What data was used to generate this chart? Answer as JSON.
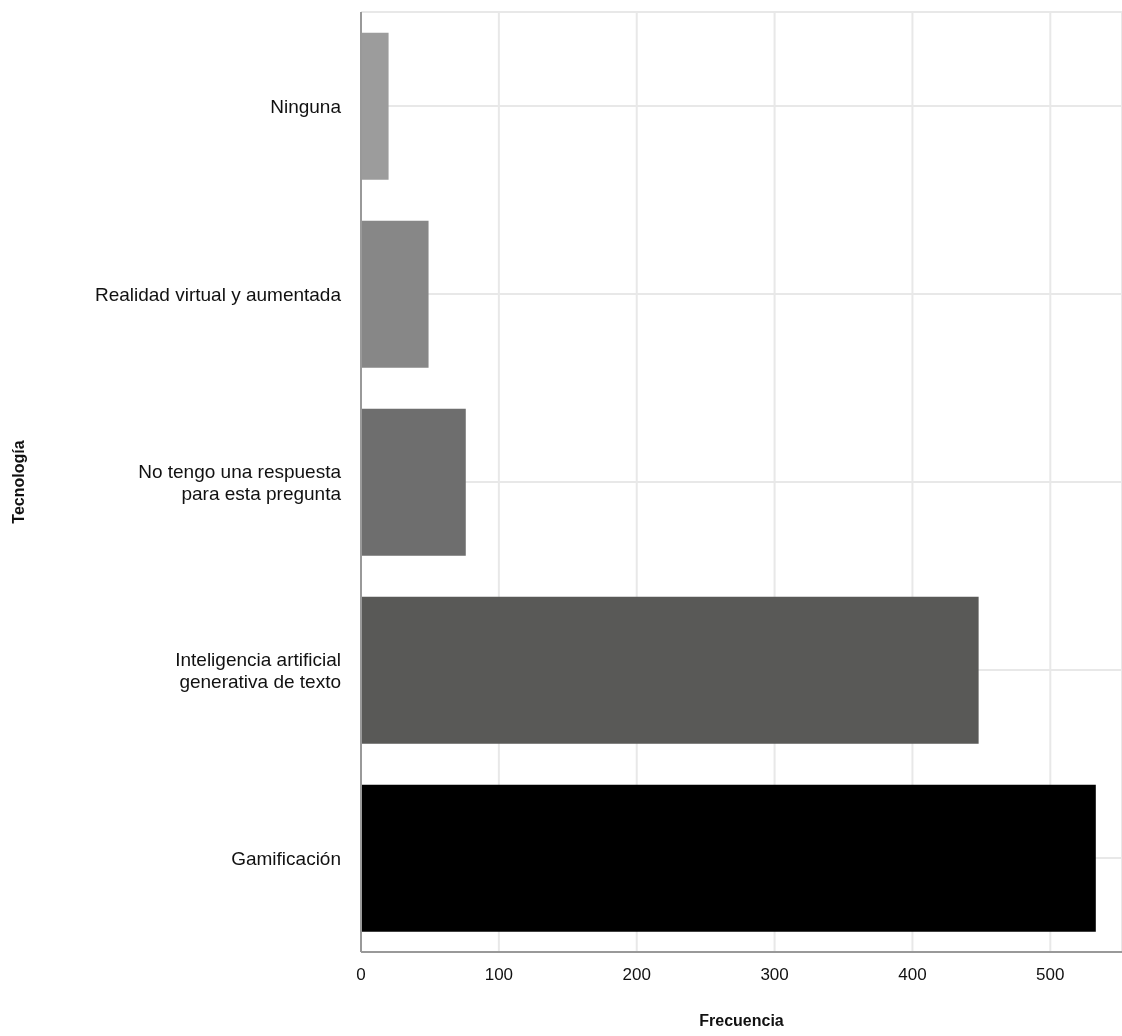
{
  "chart_data": {
    "type": "bar",
    "orientation": "horizontal",
    "xlabel": "Frecuencia",
    "ylabel": "Tecnología",
    "categories": [
      "Ninguna",
      "Realidad virtual y aumentada",
      "No tengo una respuesta\npara esta pregunta",
      "Inteligencia artificial\ngenerativa de texto",
      "Gamificación"
    ],
    "values": [
      20,
      49,
      76,
      448,
      533
    ],
    "colors": [
      "#9c9c9c",
      "#878787",
      "#6e6e6e",
      "#595957",
      "#000000"
    ],
    "xlim": [
      0,
      552
    ],
    "xticks": [
      0,
      100,
      200,
      300,
      400,
      500
    ],
    "grid": true
  }
}
